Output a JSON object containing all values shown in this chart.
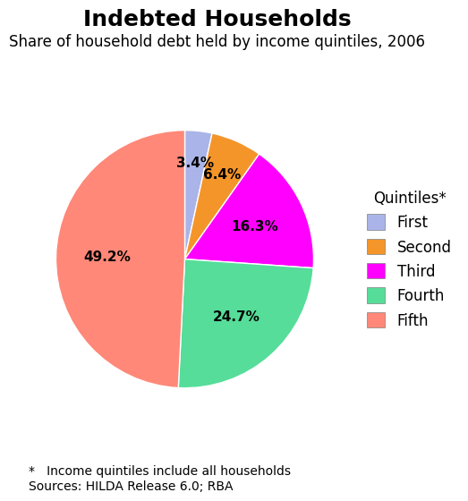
{
  "title": "Indebted Households",
  "subtitle": "Share of household debt held by income quintiles, 2006",
  "labels": [
    "First",
    "Second",
    "Third",
    "Fourth",
    "Fifth"
  ],
  "values": [
    3.4,
    6.4,
    16.3,
    24.7,
    49.2
  ],
  "colors": [
    "#aab4e8",
    "#f4952a",
    "#ff00ff",
    "#55dd99",
    "#ff8878"
  ],
  "label_texts": [
    "3.4%",
    "6.4%",
    "16.3%",
    "24.7%",
    "49.2%"
  ],
  "legend_title": "Quintiles*",
  "footnote": "*   Income quintiles include all households\nSources: HILDA Release 6.0; RBA",
  "startangle": 90,
  "title_fontsize": 18,
  "subtitle_fontsize": 12,
  "label_fontsize": 11,
  "legend_fontsize": 12,
  "footnote_fontsize": 10
}
